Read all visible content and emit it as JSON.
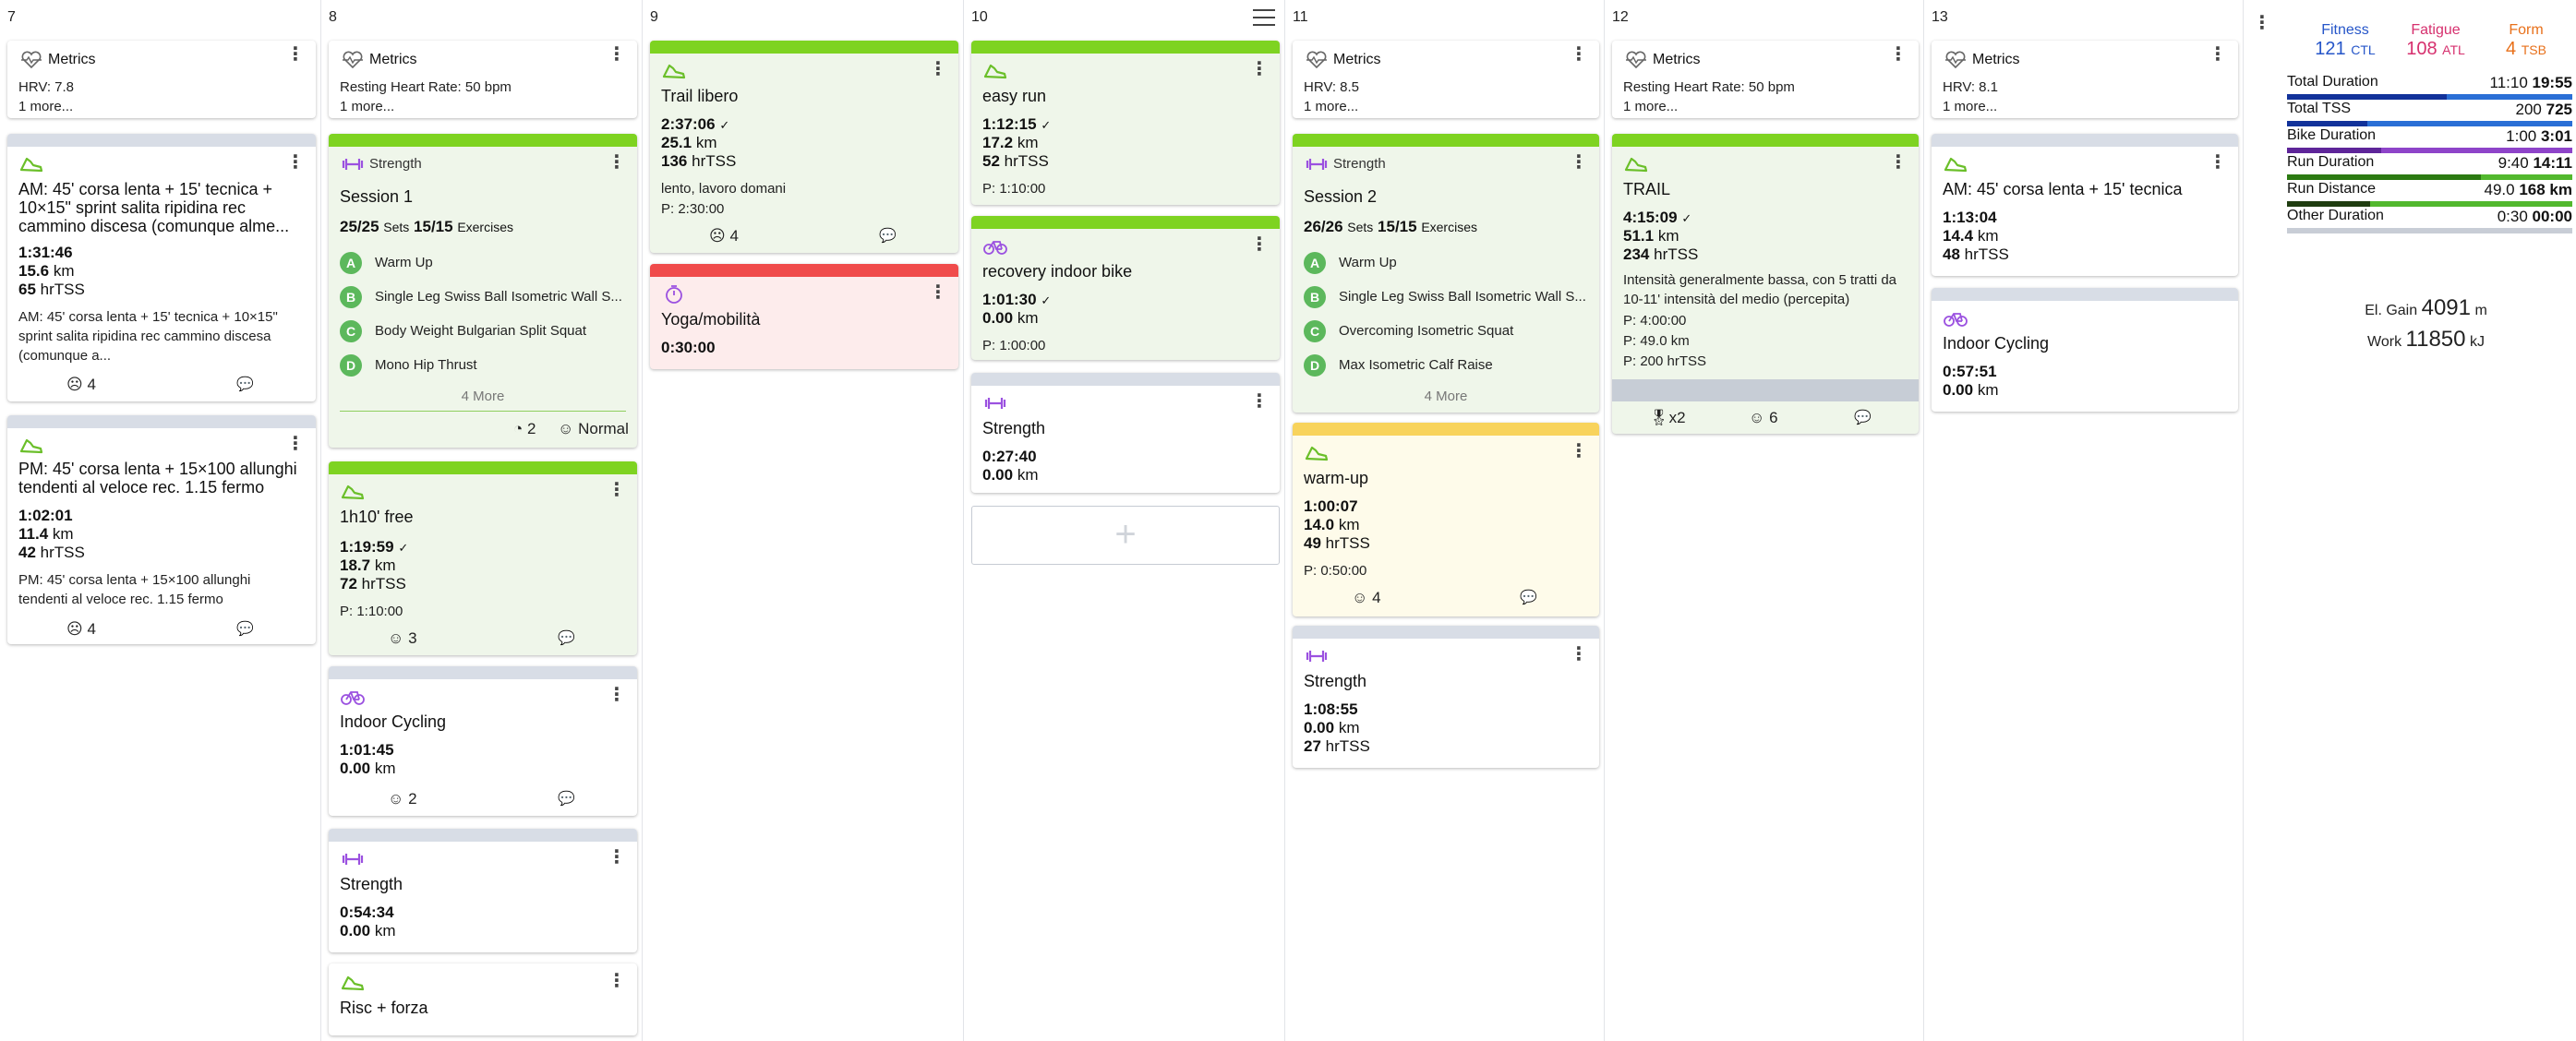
{
  "days": [
    "7",
    "8",
    "9",
    "10",
    "11",
    "12",
    "13"
  ],
  "metrics": [
    {
      "title": "Metrics",
      "line": "HRV: 7.8",
      "more": "1 more..."
    },
    {
      "title": "Metrics",
      "line": "Resting Heart Rate: 50 bpm",
      "more": "1 more..."
    },
    {
      "title": "Metrics",
      "line": "HRV: 8.5",
      "more": "1 more..."
    },
    {
      "title": "Metrics",
      "line": "Resting Heart Rate: 50 bpm",
      "more": "1 more..."
    },
    {
      "title": "Metrics",
      "line": "HRV: 8.1",
      "more": "1 more..."
    }
  ],
  "d7": {
    "am": {
      "title": "AM: 45' corsa lenta + 15' tecnica + 10×15\" sprint salita ripidina rec cammino discesa (comunque alme...",
      "time": "1:31:46",
      "km": "15.6",
      "kmu": "km",
      "tss": "65",
      "tssu": "hrTSS",
      "desc": "AM: 45' corsa lenta + 15' tecnica + 10×15\" sprint salita ripidina rec cammino discesa (comunque a...",
      "feel": "4"
    },
    "pm": {
      "title": "PM: 45' corsa lenta + 15×100 allunghi tendenti al veloce rec. 1.15 fermo",
      "time": "1:02:01",
      "km": "11.4",
      "kmu": "km",
      "tss": "42",
      "tssu": "hrTSS",
      "desc": "PM: 45' corsa lenta + 15×100 allunghi tendenti al veloce rec. 1.15 fermo",
      "feel": "4"
    }
  },
  "d8": {
    "strength": {
      "type": "Strength",
      "title": "Session 1",
      "sets": "25/25",
      "sets_label": "Sets",
      "ex": "15/15",
      "ex_label": "Exercises",
      "items": [
        {
          "l": "A",
          "n": "Warm Up"
        },
        {
          "l": "B",
          "n": "Single Leg Swiss Ball Isometric Wall S..."
        },
        {
          "l": "C",
          "n": "Body Weight Bulgarian Split Squat"
        },
        {
          "l": "D",
          "n": "Mono Hip Thrust"
        }
      ],
      "more": "4 More",
      "rpe": "2",
      "feel": "Normal"
    },
    "free": {
      "title": "1h10' free",
      "time": "1:19:59",
      "km": "18.7",
      "kmu": "km",
      "tss": "72",
      "tssu": "hrTSS",
      "plan": "P: 1:10:00",
      "feel": "3"
    },
    "cycling": {
      "title": "Indoor Cycling",
      "time": "1:01:45",
      "km": "0.00",
      "kmu": "km",
      "feel": "2"
    },
    "str2": {
      "title": "Strength",
      "time": "0:54:34",
      "km": "0.00",
      "kmu": "km"
    },
    "risc": {
      "title": "Risc + forza"
    }
  },
  "d9": {
    "trail": {
      "title": "Trail libero",
      "time": "2:37:06",
      "km": "25.1",
      "kmu": "km",
      "tss": "136",
      "tssu": "hrTSS",
      "desc": "lento, lavoro domani",
      "plan": "P: 2:30:00",
      "feel": "4"
    },
    "yoga": {
      "title": "Yoga/mobilità",
      "time": "0:30:00"
    }
  },
  "d10": {
    "easy": {
      "title": "easy run",
      "time": "1:12:15",
      "km": "17.2",
      "kmu": "km",
      "tss": "52",
      "tssu": "hrTSS",
      "plan": "P: 1:10:00"
    },
    "bike": {
      "title": "recovery indoor bike",
      "time": "1:01:30",
      "km": "0.00",
      "kmu": "km",
      "plan": "P: 1:00:00"
    },
    "str": {
      "title": "Strength",
      "time": "0:27:40",
      "km": "0.00",
      "kmu": "km"
    }
  },
  "d11": {
    "strength": {
      "type": "Strength",
      "title": "Session 2",
      "sets": "26/26",
      "sets_label": "Sets",
      "ex": "15/15",
      "ex_label": "Exercises",
      "items": [
        {
          "l": "A",
          "n": "Warm Up"
        },
        {
          "l": "B",
          "n": "Single Leg Swiss Ball Isometric Wall S..."
        },
        {
          "l": "C",
          "n": "Overcoming Isometric Squat"
        },
        {
          "l": "D",
          "n": "Max Isometric Calf Raise"
        }
      ],
      "more": "4 More"
    },
    "warm": {
      "title": "warm-up",
      "time": "1:00:07",
      "km": "14.0",
      "kmu": "km",
      "tss": "49",
      "tssu": "hrTSS",
      "plan": "P: 0:50:00",
      "feel": "4"
    },
    "str": {
      "title": "Strength",
      "time": "1:08:55",
      "km": "0.00",
      "kmu": "km",
      "tss": "27",
      "tssu": "hrTSS"
    }
  },
  "d12": {
    "trail": {
      "title": "TRAIL",
      "time": "4:15:09",
      "km": "51.1",
      "kmu": "km",
      "tss": "234",
      "tssu": "hrTSS",
      "desc": "Intensità generalmente bassa, con 5 tratti da 10-11' intensità del medio (percepita)",
      "p1": "P: 4:00:00",
      "p2": "P: 49.0 km",
      "p3": "P: 200 hrTSS",
      "medal": "x2",
      "feel": "6"
    }
  },
  "d13": {
    "am": {
      "title": "AM: 45' corsa lenta + 15' tecnica",
      "time": "1:13:04",
      "km": "14.4",
      "kmu": "km",
      "tss": "48",
      "tssu": "hrTSS"
    },
    "cycling": {
      "title": "Indoor Cycling",
      "time": "0:57:51",
      "km": "0.00",
      "kmu": "km"
    }
  },
  "summary": {
    "fitness_label": "Fitness",
    "fitness": "121",
    "fitness_unit": "CTL",
    "fatigue_label": "Fatigue",
    "fatigue": "108",
    "fatigue_unit": "ATL",
    "form_label": "Form",
    "form": "4",
    "form_unit": "TSB",
    "rows": [
      {
        "label": "Total Duration",
        "a": "11:10",
        "b": "19:55",
        "ratio": 0.56,
        "color": "#2a6fd6",
        "dark": "#12329a"
      },
      {
        "label": "Total TSS",
        "a": "200",
        "b": "725",
        "ratio": 0.28,
        "color": "#2a6fd6",
        "dark": "#12329a"
      },
      {
        "label": "Bike Duration",
        "a": "1:00",
        "b": "3:01",
        "ratio": 0.33,
        "color": "#8e44c9",
        "dark": "#5e2599"
      },
      {
        "label": "Run Duration",
        "a": "9:40",
        "b": "14:11",
        "ratio": 0.68,
        "color": "#52b82e",
        "dark": "#2c7a12"
      },
      {
        "label": "Run Distance",
        "a": "49.0",
        "b": "168 km",
        "ratio": 0.29,
        "color": "#52b82e",
        "dark": "#1f3d10"
      },
      {
        "label": "Other Duration",
        "a": "0:30",
        "b": "00:00",
        "ratio": 1.0,
        "color": "#c8cdd6",
        "dark": "#c8cdd6"
      }
    ],
    "elgain_label": "El. Gain",
    "elgain": "4091",
    "elgain_unit": "m",
    "work_label": "Work",
    "work": "11850",
    "work_unit": "kJ"
  },
  "colors": {
    "run": "#7ed321",
    "run_bg": "#eff6ea",
    "red": "#f04b4b",
    "red_bg": "#fdecec",
    "yellow": "#f8d35c",
    "yellow_bg": "#fefbea",
    "grey": "#d8dde6",
    "violet": "#9b51e0"
  }
}
